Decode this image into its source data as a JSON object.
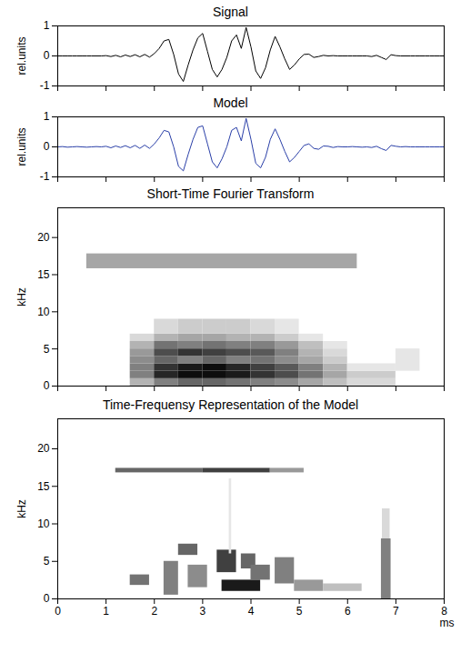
{
  "chart_data": [
    {
      "type": "line",
      "title": "Signal",
      "ylabel": "rel.units",
      "color": "#000000",
      "x": [
        0,
        0.1,
        0.2,
        0.3,
        0.4,
        0.5,
        0.6,
        0.7,
        0.8,
        0.9,
        1,
        1.1,
        1.2,
        1.3,
        1.4,
        1.5,
        1.6,
        1.7,
        1.8,
        1.9,
        2,
        2.1,
        2.2,
        2.3,
        2.4,
        2.5,
        2.6,
        2.7,
        2.8,
        2.9,
        3,
        3.1,
        3.2,
        3.3,
        3.4,
        3.5,
        3.6,
        3.7,
        3.8,
        3.9,
        4,
        4.1,
        4.2,
        4.3,
        4.4,
        4.5,
        4.6,
        4.7,
        4.8,
        4.9,
        5,
        5.1,
        5.2,
        5.3,
        5.4,
        5.5,
        5.6,
        5.7,
        5.8,
        5.9,
        6,
        6.1,
        6.2,
        6.3,
        6.4,
        6.5,
        6.6,
        6.7,
        6.8,
        6.9,
        7,
        7.1,
        7.2,
        7.3,
        7.4,
        7.5,
        7.6,
        7.7,
        7.8,
        7.9,
        8
      ],
      "values": [
        0,
        0,
        0,
        0,
        0,
        0,
        0,
        0,
        0,
        0,
        0.01,
        -0.02,
        0.02,
        -0.03,
        0.03,
        -0.02,
        0.04,
        -0.03,
        0.05,
        -0.04,
        0.08,
        0.25,
        0.5,
        0.55,
        0.05,
        -0.6,
        -0.85,
        -0.3,
        0.2,
        0.6,
        0.75,
        0.15,
        -0.45,
        -0.7,
        -0.45,
        -0.05,
        0.5,
        0.7,
        0.25,
        0.95,
        0.3,
        -0.5,
        -0.75,
        -0.4,
        0.2,
        0.65,
        0.3,
        -0.1,
        -0.45,
        -0.3,
        -0.1,
        0.05,
        0.06,
        -0.05,
        -0.02,
        0.02,
        0,
        0.01,
        0,
        0,
        0,
        0,
        0,
        0,
        0,
        -0.02,
        0.02,
        -0.05,
        -0.12,
        0.04,
        0.01,
        0,
        0,
        0,
        0,
        0,
        0,
        0,
        0,
        0,
        0
      ],
      "xlim": [
        0,
        8
      ],
      "xticks": [
        0,
        1,
        2,
        3,
        4,
        5,
        6,
        7,
        8
      ],
      "ylim": [
        -1,
        1
      ],
      "yticks": [
        -1,
        0,
        1
      ],
      "tick_labels": "y"
    },
    {
      "type": "line",
      "title": "Model",
      "ylabel": "rel.units",
      "color": "#2a3fa8",
      "x": [
        0,
        0.1,
        0.2,
        0.3,
        0.4,
        0.5,
        0.6,
        0.7,
        0.8,
        0.9,
        1,
        1.1,
        1.2,
        1.3,
        1.4,
        1.5,
        1.6,
        1.7,
        1.8,
        1.9,
        2,
        2.1,
        2.2,
        2.3,
        2.4,
        2.5,
        2.6,
        2.7,
        2.8,
        2.9,
        3,
        3.1,
        3.2,
        3.3,
        3.4,
        3.5,
        3.6,
        3.7,
        3.8,
        3.9,
        4,
        4.1,
        4.2,
        4.3,
        4.4,
        4.5,
        4.6,
        4.7,
        4.8,
        4.9,
        5,
        5.1,
        5.2,
        5.3,
        5.4,
        5.5,
        5.6,
        5.7,
        5.8,
        5.9,
        6,
        6.1,
        6.2,
        6.3,
        6.4,
        6.5,
        6.6,
        6.7,
        6.8,
        6.9,
        7,
        7.1,
        7.2,
        7.3,
        7.4,
        7.5,
        7.6,
        7.7,
        7.8,
        7.9,
        8
      ],
      "values": [
        0,
        0.01,
        -0.01,
        0,
        0.01,
        0,
        -0.01,
        0,
        0.01,
        0,
        0.02,
        -0.03,
        0.03,
        -0.02,
        0.04,
        -0.03,
        0.05,
        -0.05,
        0.06,
        -0.05,
        0.1,
        0.3,
        0.55,
        0.5,
        0,
        -0.65,
        -0.8,
        -0.25,
        0.25,
        0.65,
        0.7,
        0.1,
        -0.5,
        -0.7,
        -0.4,
        0,
        0.55,
        0.65,
        0.2,
        0.95,
        0.25,
        -0.55,
        -0.7,
        -0.35,
        0.25,
        0.6,
        0.25,
        -0.15,
        -0.5,
        -0.35,
        -0.15,
        0.05,
        0.1,
        -0.05,
        -0.08,
        0.03,
        0.02,
        -0.02,
        0.01,
        0,
        0,
        0.01,
        0,
        -0.01,
        0,
        -0.02,
        0.02,
        -0.06,
        -0.12,
        0.05,
        0.02,
        0,
        0.01,
        0,
        0,
        0,
        0,
        0,
        0,
        0,
        0
      ],
      "xlim": [
        0,
        8
      ],
      "xticks": [
        0,
        1,
        2,
        3,
        4,
        5,
        6,
        7,
        8
      ],
      "ylim": [
        -1,
        1
      ],
      "yticks": [
        -1,
        0,
        1
      ],
      "tick_labels": "y"
    },
    {
      "type": "heatmap",
      "title": "Short-Time Fourier Transform",
      "ylabel": "kHz",
      "xlim": [
        0,
        8
      ],
      "xticks": [
        0,
        1,
        2,
        3,
        4,
        5,
        6,
        7,
        8
      ],
      "ylim": [
        0,
        24
      ],
      "yticks": [
        0,
        5,
        10,
        15,
        20
      ],
      "tick_labels": "y",
      "zlim": [
        0,
        1
      ],
      "cells": [
        [
          0.6,
          6.2,
          15.8,
          17.8,
          0.35
        ],
        [
          1.5,
          2,
          0,
          1,
          0.3
        ],
        [
          1.5,
          2,
          1,
          2,
          0.5
        ],
        [
          1.5,
          2,
          2,
          3,
          0.5
        ],
        [
          1.5,
          2,
          3,
          4,
          0.45
        ],
        [
          1.5,
          2,
          4,
          5,
          0.4
        ],
        [
          1.5,
          2,
          5,
          6,
          0.3
        ],
        [
          1.5,
          2,
          6,
          7,
          0.15
        ],
        [
          2,
          2.5,
          0,
          1,
          0.5
        ],
        [
          2,
          2.5,
          1,
          2,
          0.85
        ],
        [
          2,
          2.5,
          2,
          3,
          0.8
        ],
        [
          2,
          2.5,
          3,
          4,
          0.6
        ],
        [
          2,
          2.5,
          4,
          5,
          0.7
        ],
        [
          2,
          2.5,
          5,
          6,
          0.55
        ],
        [
          2,
          2.5,
          6,
          7,
          0.3
        ],
        [
          2,
          2.5,
          7,
          9,
          0.15
        ],
        [
          2.5,
          3,
          0,
          1,
          0.6
        ],
        [
          2.5,
          3,
          1,
          2,
          0.95
        ],
        [
          2.5,
          3,
          2,
          3,
          0.9
        ],
        [
          2.5,
          3,
          3,
          4,
          0.5
        ],
        [
          2.5,
          3,
          4,
          5,
          0.8
        ],
        [
          2.5,
          3,
          5,
          6,
          0.5
        ],
        [
          2.5,
          3,
          6,
          7,
          0.35
        ],
        [
          2.5,
          3,
          7,
          9,
          0.2
        ],
        [
          3,
          3.5,
          0,
          1,
          0.6
        ],
        [
          3,
          3.5,
          1,
          2,
          0.95
        ],
        [
          3,
          3.5,
          2,
          3,
          0.95
        ],
        [
          3,
          3.5,
          3,
          4,
          0.6
        ],
        [
          3,
          3.5,
          4,
          5,
          0.75
        ],
        [
          3,
          3.5,
          5,
          6,
          0.55
        ],
        [
          3,
          3.5,
          6,
          7,
          0.35
        ],
        [
          3,
          3.5,
          7,
          9,
          0.2
        ],
        [
          3.5,
          4,
          0,
          1,
          0.55
        ],
        [
          3.5,
          4,
          1,
          2,
          0.9
        ],
        [
          3.5,
          4,
          2,
          3,
          0.85
        ],
        [
          3.5,
          4,
          3,
          4,
          0.5
        ],
        [
          3.5,
          4,
          4,
          5,
          0.7
        ],
        [
          3.5,
          4,
          5,
          6,
          0.5
        ],
        [
          3.5,
          4,
          6,
          7,
          0.3
        ],
        [
          3.5,
          4,
          7,
          9,
          0.2
        ],
        [
          4,
          4.5,
          0,
          1,
          0.5
        ],
        [
          4,
          4.5,
          1,
          2,
          0.8
        ],
        [
          4,
          4.5,
          2,
          3,
          0.75
        ],
        [
          4,
          4.5,
          3,
          4,
          0.55
        ],
        [
          4,
          4.5,
          4,
          5,
          0.65
        ],
        [
          4,
          4.5,
          5,
          6,
          0.5
        ],
        [
          4,
          4.5,
          6,
          7,
          0.3
        ],
        [
          4,
          4.5,
          7,
          9,
          0.15
        ],
        [
          4.5,
          5,
          0,
          1,
          0.45
        ],
        [
          4.5,
          5,
          1,
          2,
          0.7
        ],
        [
          4.5,
          5,
          2,
          3,
          0.65
        ],
        [
          4.5,
          5,
          3,
          4,
          0.45
        ],
        [
          4.5,
          5,
          4,
          5,
          0.5
        ],
        [
          4.5,
          5,
          5,
          6,
          0.4
        ],
        [
          4.5,
          5,
          6,
          7,
          0.2
        ],
        [
          4.5,
          5,
          7,
          9,
          0.1
        ],
        [
          5,
          5.5,
          0,
          1,
          0.35
        ],
        [
          5,
          5.5,
          1,
          2,
          0.55
        ],
        [
          5,
          5.5,
          2,
          3,
          0.5
        ],
        [
          5,
          5.5,
          3,
          4,
          0.35
        ],
        [
          5,
          5.5,
          4,
          5,
          0.3
        ],
        [
          5,
          5.5,
          5,
          6,
          0.25
        ],
        [
          5,
          5.5,
          6,
          7,
          0.1
        ],
        [
          5.5,
          6,
          0,
          1,
          0.25
        ],
        [
          5.5,
          6,
          1,
          2,
          0.35
        ],
        [
          5.5,
          6,
          2,
          3,
          0.3
        ],
        [
          5.5,
          6,
          3,
          4,
          0.2
        ],
        [
          5.5,
          6,
          4,
          5,
          0.15
        ],
        [
          5.5,
          6,
          5,
          6,
          0.1
        ],
        [
          6,
          7,
          0,
          1,
          0.15
        ],
        [
          6,
          7,
          1,
          2,
          0.2
        ],
        [
          6,
          7,
          2,
          3,
          0.1
        ],
        [
          7,
          7.5,
          2,
          5,
          0.1
        ]
      ]
    },
    {
      "type": "heatmap",
      "title": "Time-Frequensy Representation of the Model",
      "ylabel": "kHz",
      "xlabel": "ms",
      "xlim": [
        0,
        8
      ],
      "xticks": [
        0,
        1,
        2,
        3,
        4,
        5,
        6,
        7,
        8
      ],
      "ylim": [
        0,
        24
      ],
      "yticks": [
        0,
        5,
        10,
        15,
        20
      ],
      "zlim": [
        0,
        1
      ],
      "cells": [
        [
          1.2,
          3,
          16.8,
          17.4,
          0.6
        ],
        [
          3,
          4.4,
          16.8,
          17.4,
          0.75
        ],
        [
          4.4,
          5.1,
          16.8,
          17.4,
          0.4
        ],
        [
          1.5,
          1.9,
          1.8,
          3.2,
          0.55
        ],
        [
          2.2,
          2.5,
          0.5,
          5,
          0.5
        ],
        [
          2.5,
          2.9,
          5.8,
          7.3,
          0.6
        ],
        [
          2.7,
          3.1,
          1.5,
          4.5,
          0.45
        ],
        [
          3.3,
          3.7,
          3.5,
          6.5,
          0.75
        ],
        [
          3.4,
          4.2,
          1,
          2.5,
          0.9
        ],
        [
          3.8,
          4.1,
          4,
          6,
          0.6
        ],
        [
          4,
          4.4,
          2.5,
          4.5,
          0.55
        ],
        [
          4.5,
          4.9,
          2,
          5.5,
          0.5
        ],
        [
          4.9,
          5.5,
          1,
          2.5,
          0.4
        ],
        [
          5.5,
          6.3,
          1,
          2,
          0.25
        ],
        [
          6.7,
          6.9,
          0,
          8,
          0.5
        ],
        [
          6.72,
          6.88,
          8,
          12,
          0.15
        ],
        [
          3.55,
          3.6,
          6,
          16,
          0.1
        ]
      ]
    }
  ]
}
